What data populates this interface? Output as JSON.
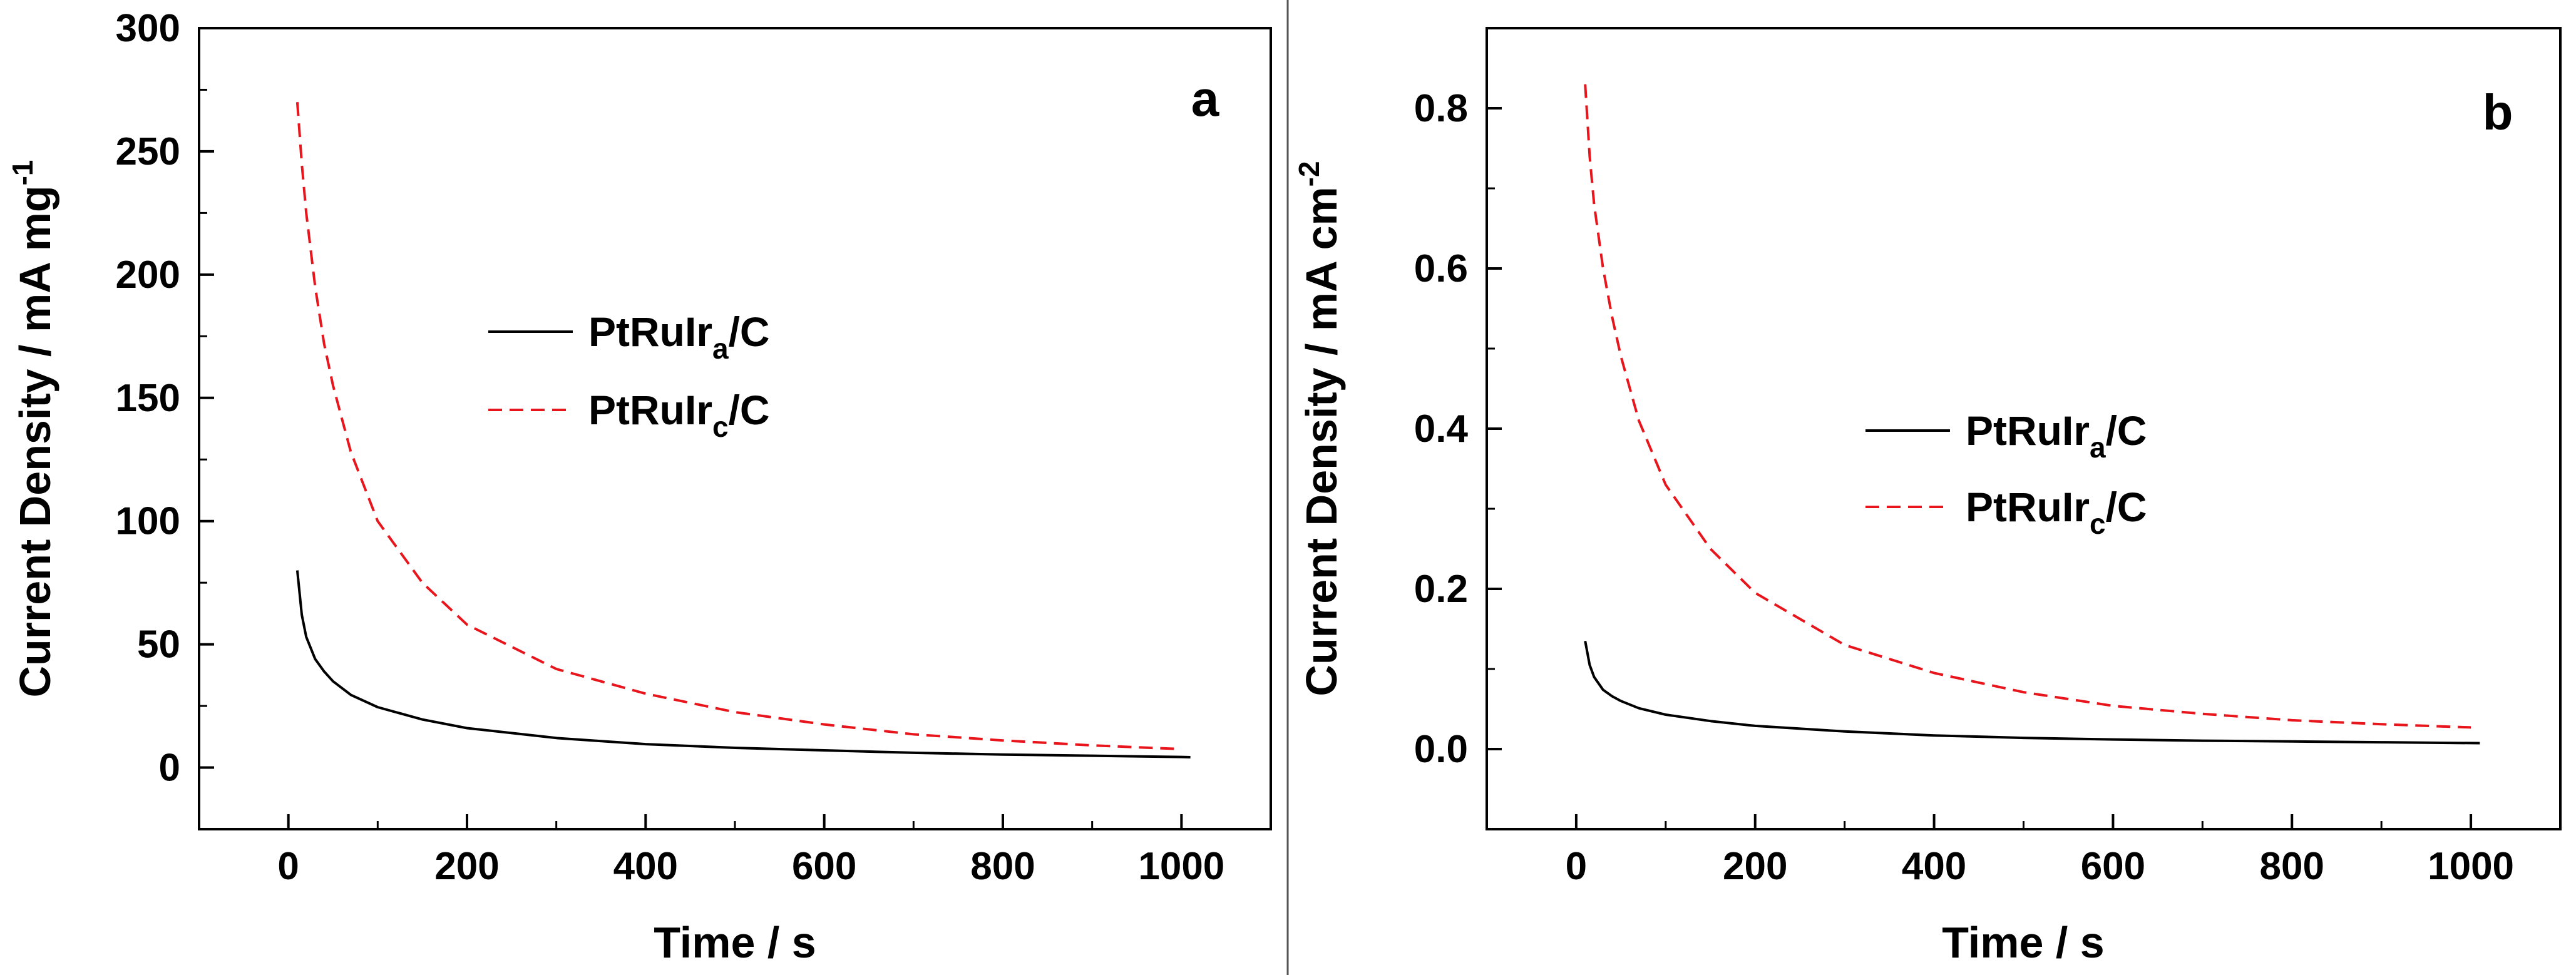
{
  "chart_data": [
    {
      "type": "line",
      "panel_label": "a",
      "title": "",
      "xlabel": "Time / s",
      "ylabel_main": "Current Density / mA mg",
      "ylabel_sup": "-1",
      "xlim": [
        -100,
        1100
      ],
      "ylim": [
        -25,
        300
      ],
      "xticks": [
        0,
        200,
        400,
        600,
        800,
        1000
      ],
      "yticks": [
        0,
        50,
        100,
        150,
        200,
        250,
        300
      ],
      "legend_position": "middle",
      "series": [
        {
          "name": "PtRuIra/C",
          "label_main": "PtRuIr",
          "label_sub": "a",
          "label_end": "/C",
          "color": "#000000",
          "style": "solid",
          "x": [
            10,
            15,
            20,
            30,
            40,
            50,
            70,
            100,
            150,
            200,
            300,
            400,
            500,
            600,
            700,
            800,
            900,
            1000,
            1010
          ],
          "y": [
            80,
            62,
            53,
            44,
            39,
            35,
            29.5,
            24.5,
            19.5,
            16,
            12,
            9.5,
            8,
            7,
            6,
            5.3,
            4.8,
            4.3,
            4.2
          ]
        },
        {
          "name": "PtRuIrc/C",
          "label_main": "PtRuIr",
          "label_sub": "c",
          "label_end": "/C",
          "color": "#e8161c",
          "style": "dashed",
          "x": [
            10,
            15,
            20,
            30,
            40,
            50,
            70,
            100,
            150,
            200,
            300,
            400,
            500,
            600,
            700,
            800,
            900,
            1000
          ],
          "y": [
            270,
            245,
            225,
            195,
            172,
            155,
            128,
            100,
            75,
            58,
            40,
            30,
            22.5,
            17.5,
            13.5,
            11,
            9,
            7.5
          ]
        }
      ]
    },
    {
      "type": "line",
      "panel_label": "b",
      "title": "",
      "xlabel": "Time / s",
      "ylabel_main": "Current Density / mA cm",
      "ylabel_sup": "-2",
      "xlim": [
        -100,
        1100
      ],
      "ylim": [
        -0.1,
        0.9
      ],
      "xticks": [
        0,
        200,
        400,
        600,
        800,
        1000
      ],
      "yticks": [
        0.0,
        0.2,
        0.4,
        0.6,
        0.8
      ],
      "legend_position": "middle-right",
      "series": [
        {
          "name": "PtRuIra/C",
          "label_main": "PtRuIr",
          "label_sub": "a",
          "label_end": "/C",
          "color": "#000000",
          "style": "solid",
          "x": [
            10,
            15,
            20,
            30,
            40,
            50,
            70,
            100,
            150,
            200,
            300,
            400,
            500,
            600,
            700,
            800,
            900,
            1000,
            1010
          ],
          "y": [
            0.135,
            0.105,
            0.09,
            0.074,
            0.066,
            0.06,
            0.051,
            0.043,
            0.035,
            0.029,
            0.022,
            0.017,
            0.014,
            0.012,
            0.0105,
            0.0095,
            0.0085,
            0.0075,
            0.0074
          ]
        },
        {
          "name": "PtRuIrc/C",
          "label_main": "PtRuIr",
          "label_sub": "c",
          "label_end": "/C",
          "color": "#e8161c",
          "style": "dashed",
          "x": [
            10,
            15,
            20,
            30,
            40,
            50,
            70,
            100,
            150,
            200,
            300,
            400,
            500,
            600,
            700,
            800,
            900,
            1000
          ],
          "y": [
            0.83,
            0.74,
            0.68,
            0.6,
            0.54,
            0.49,
            0.41,
            0.33,
            0.25,
            0.195,
            0.13,
            0.095,
            0.071,
            0.054,
            0.044,
            0.036,
            0.031,
            0.027
          ]
        }
      ]
    }
  ]
}
